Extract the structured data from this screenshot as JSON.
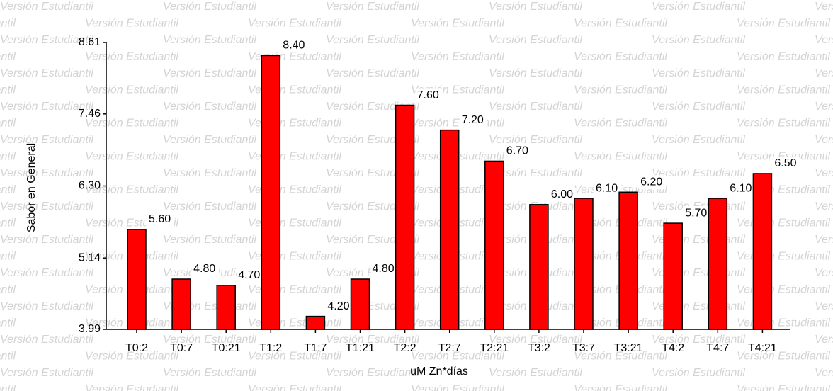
{
  "watermark": "Versión Estudiantil",
  "chart_data": {
    "type": "bar",
    "x_label": "uM Zn*días",
    "y_label": "Sabor en General",
    "categories": [
      "T0:2",
      "T0:7",
      "T0:21",
      "T1:2",
      "T1:7",
      "T1:21",
      "T2:2",
      "T2:7",
      "T2:21",
      "T3:2",
      "T3:7",
      "T3:21",
      "T4:2",
      "T4:7",
      "T4:21"
    ],
    "values": [
      5.6,
      4.8,
      4.7,
      8.4,
      4.2,
      4.8,
      7.6,
      7.2,
      6.7,
      6.0,
      6.1,
      6.2,
      5.7,
      6.1,
      6.5
    ],
    "value_labels": [
      "5.60",
      "4.80",
      "4.70",
      "8.40",
      "4.20",
      "4.80",
      "7.60",
      "7.20",
      "6.70",
      "6.00",
      "6.10",
      "6.20",
      "5.70",
      "6.10",
      "6.50"
    ],
    "color": "#ff0000",
    "ylim": [
      3.99,
      8.61
    ],
    "yticks": [
      3.99,
      5.14,
      {
        "value": 6.3,
        "label": "6.30"
      },
      7.46,
      8.61
    ]
  }
}
